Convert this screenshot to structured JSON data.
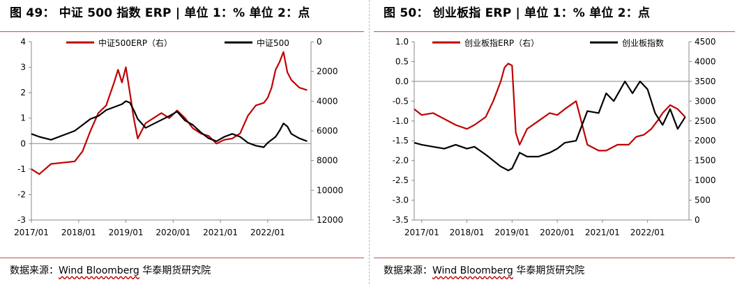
{
  "source_prefix": "数据来源：",
  "source_wavy": "Wind Bloomberg",
  "source_suffix": " 华泰期货研究院",
  "chart_data": [
    {
      "figure_title": "图 49：  中证 500 指数 ERP  | 单位 1：% 单位 2：点",
      "type": "line",
      "x_ticks": [
        "2017/01",
        "2018/01",
        "2019/01",
        "2020/01",
        "2021/01",
        "2022/01"
      ],
      "x_range": [
        "2017-01",
        "2022-12"
      ],
      "y_left": {
        "min": -3,
        "max": 4,
        "ticks": [
          4,
          3,
          2,
          1,
          0,
          -1,
          -2,
          -3
        ]
      },
      "y_right": {
        "min": 0,
        "max": 12000,
        "inverted": true,
        "ticks": [
          0,
          2000,
          4000,
          6000,
          8000,
          10000,
          12000
        ]
      },
      "legend_position": "top",
      "colors": {
        "red": "#c00000",
        "black": "#000000"
      },
      "series": [
        {
          "name": "中证500ERP（右）",
          "axis": "left",
          "color": "#c00000",
          "x": [
            "2017-01",
            "2017-03",
            "2017-06",
            "2017-09",
            "2017-12",
            "2018-02",
            "2018-04",
            "2018-06",
            "2018-08",
            "2018-10",
            "2018-11",
            "2018-12",
            "2019-01",
            "2019-02",
            "2019-03",
            "2019-04",
            "2019-05",
            "2019-06",
            "2019-08",
            "2019-10",
            "2019-12",
            "2020-02",
            "2020-04",
            "2020-06",
            "2020-08",
            "2020-10",
            "2020-12",
            "2021-02",
            "2021-04",
            "2021-06",
            "2021-08",
            "2021-10",
            "2021-12",
            "2022-01",
            "2022-02",
            "2022-03",
            "2022-04",
            "2022-05",
            "2022-06",
            "2022-07",
            "2022-09",
            "2022-11"
          ],
          "y": [
            -1.0,
            -1.2,
            -0.8,
            -0.75,
            -0.7,
            -0.3,
            0.5,
            1.2,
            1.5,
            2.4,
            2.9,
            2.4,
            3.0,
            2.0,
            1.0,
            0.2,
            0.5,
            0.8,
            1.0,
            1.2,
            1.0,
            1.3,
            1.0,
            0.6,
            0.4,
            0.3,
            0.0,
            0.15,
            0.2,
            0.4,
            1.1,
            1.5,
            1.6,
            1.8,
            2.2,
            2.9,
            3.2,
            3.6,
            2.8,
            2.5,
            2.2,
            2.1
          ]
        },
        {
          "name": "中证500",
          "axis": "right",
          "color": "#000000",
          "x": [
            "2017-01",
            "2017-03",
            "2017-06",
            "2017-09",
            "2017-12",
            "2018-02",
            "2018-04",
            "2018-06",
            "2018-08",
            "2018-10",
            "2018-12",
            "2019-01",
            "2019-02",
            "2019-03",
            "2019-04",
            "2019-06",
            "2019-09",
            "2019-12",
            "2020-02",
            "2020-04",
            "2020-06",
            "2020-08",
            "2020-10",
            "2020-12",
            "2021-02",
            "2021-04",
            "2021-06",
            "2021-08",
            "2021-10",
            "2021-12",
            "2022-01",
            "2022-03",
            "2022-04",
            "2022-05",
            "2022-06",
            "2022-07",
            "2022-09",
            "2022-11"
          ],
          "y": [
            6200,
            6400,
            6600,
            6300,
            6000,
            5600,
            5200,
            5000,
            4600,
            4400,
            4200,
            4000,
            4100,
            4600,
            5200,
            5800,
            5400,
            5000,
            4700,
            5300,
            5600,
            6100,
            6500,
            6700,
            6400,
            6200,
            6400,
            6800,
            7000,
            7100,
            6800,
            6400,
            6000,
            5500,
            5700,
            6200,
            6500,
            6700
          ]
        }
      ]
    },
    {
      "figure_title": "图 50：  创业板指 ERP  | 单位 1：% 单位 2：点",
      "type": "line",
      "x_ticks": [
        "2017/01",
        "2018/01",
        "2019/01",
        "2020/01",
        "2021/01",
        "2022/01"
      ],
      "x_range": [
        "2016-11",
        "2022-12"
      ],
      "y_left": {
        "min": -3.5,
        "max": 1.0,
        "ticks": [
          1.0,
          0.5,
          0.0,
          -0.5,
          -1.0,
          -1.5,
          -2.0,
          -2.5,
          -3.0,
          -3.5
        ]
      },
      "y_right": {
        "min": 0,
        "max": 4500,
        "ticks": [
          4500,
          4000,
          3500,
          3000,
          2500,
          2000,
          1500,
          1000,
          500,
          0
        ]
      },
      "legend_position": "top",
      "series": [
        {
          "name": "创业板指ERP（右）",
          "axis": "left",
          "color": "#c00000",
          "x": [
            "2016-11",
            "2017-01",
            "2017-04",
            "2017-07",
            "2017-10",
            "2018-01",
            "2018-03",
            "2018-06",
            "2018-08",
            "2018-10",
            "2018-11",
            "2018-12",
            "2019-01",
            "2019-02",
            "2019-03",
            "2019-05",
            "2019-08",
            "2019-11",
            "2020-01",
            "2020-03",
            "2020-06",
            "2020-09",
            "2020-12",
            "2021-02",
            "2021-05",
            "2021-08",
            "2021-10",
            "2021-12",
            "2022-02",
            "2022-04",
            "2022-05",
            "2022-07",
            "2022-09",
            "2022-11"
          ],
          "y": [
            -0.7,
            -0.85,
            -0.8,
            -0.95,
            -1.1,
            -1.2,
            -1.1,
            -0.9,
            -0.5,
            0.0,
            0.35,
            0.45,
            0.4,
            -1.3,
            -1.6,
            -1.2,
            -1.0,
            -0.8,
            -0.85,
            -0.7,
            -0.5,
            -1.6,
            -1.75,
            -1.75,
            -1.6,
            -1.6,
            -1.4,
            -1.35,
            -1.2,
            -0.95,
            -0.8,
            -0.6,
            -0.7,
            -0.9
          ]
        },
        {
          "name": "创业板指数",
          "axis": "right",
          "color": "#000000",
          "x": [
            "2016-11",
            "2017-01",
            "2017-04",
            "2017-07",
            "2017-10",
            "2018-01",
            "2018-03",
            "2018-06",
            "2018-08",
            "2018-10",
            "2018-12",
            "2019-01",
            "2019-03",
            "2019-05",
            "2019-08",
            "2019-11",
            "2020-01",
            "2020-03",
            "2020-06",
            "2020-09",
            "2020-12",
            "2021-02",
            "2021-04",
            "2021-07",
            "2021-09",
            "2021-11",
            "2022-01",
            "2022-03",
            "2022-05",
            "2022-07",
            "2022-09",
            "2022-11"
          ],
          "y": [
            1950,
            1900,
            1850,
            1800,
            1900,
            1800,
            1850,
            1650,
            1500,
            1350,
            1250,
            1300,
            1700,
            1600,
            1600,
            1700,
            1800,
            1950,
            2000,
            2750,
            2700,
            3200,
            3000,
            3500,
            3200,
            3500,
            3300,
            2700,
            2400,
            2800,
            2300,
            2600
          ]
        }
      ]
    }
  ]
}
